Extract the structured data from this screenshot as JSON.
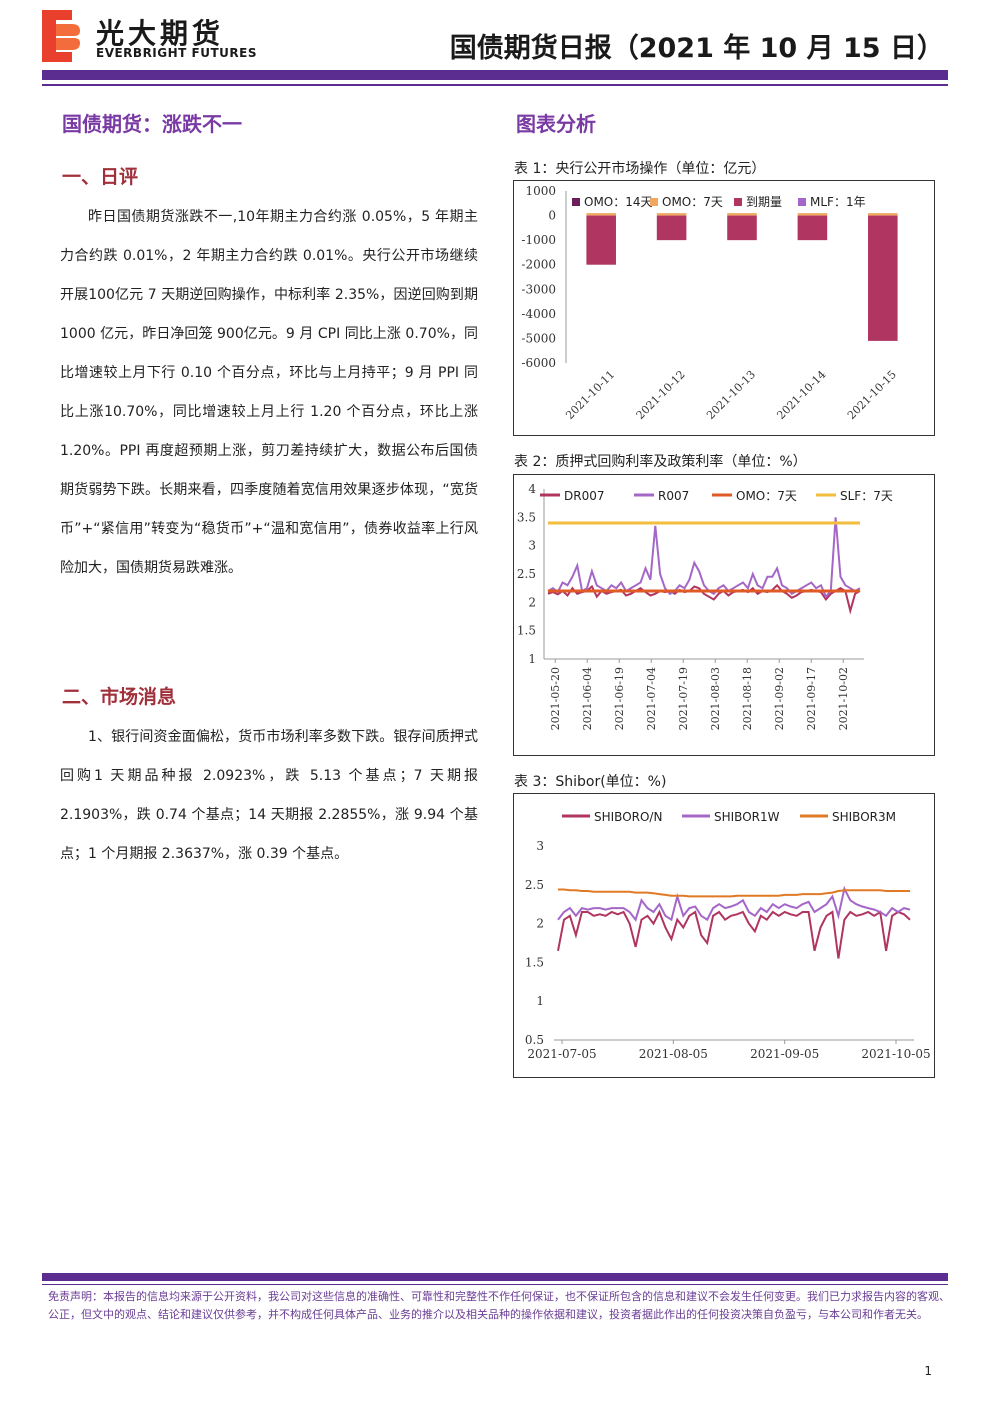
{
  "header": {
    "logo_cn": "光大期货",
    "logo_en": "EVERBRIGHT FUTURES",
    "report_title": "国债期货日报（2021 年 10 月 15 日）"
  },
  "left": {
    "main_title": "国债期货：涨跌不一",
    "section1_title": "一、日评",
    "section1_text": "昨日国债期货涨跌不一,10年期主力合约涨 0.05%，5 年期主力合约跌 0.01%，2 年期主力合约跌 0.01%。央行公开市场继续开展100亿元 7 天期逆回购操作，中标利率 2.35%，因逆回购到期1000 亿元，昨日净回笼 900亿元。9 月 CPI 同比上涨 0.70%，同比增速较上月下行 0.10 个百分点，环比与上月持平；9 月 PPI 同比上涨10.70%，同比增速较上月上行 1.20 个百分点，环比上涨 1.20%。PPI 再度超预期上涨，剪刀差持续扩大，数据公布后国债期货弱势下跌。长期来看，四季度随着宽信用效果逐步体现，“宽货币”+“紧信用”转变为“稳货币”+“温和宽信用”，债券收益率上行风险加大，国债期货易跌难涨。",
    "section2_title": "二、市场消息",
    "section2_text": "1、银行间资金面偏松，货币市场利率多数下跌。银存间质押式回购1 天期品种报 2.0923%，跌 5.13 个基点；7 天期报 2.1903%，跌 0.74 个基点；14 天期报 2.2855%，涨 9.94 个基点；1 个月期报 2.3637%，涨 0.39 个基点。"
  },
  "right": {
    "section_title": "图表分析",
    "chart1_caption": "表 1：央行公开市场操作（单位：亿元）",
    "chart2_caption": "表 2：质押式回购利率及政策利率（单位：%）",
    "chart3_caption": "表 3：Shibor(单位：%)"
  },
  "chart_data": [
    {
      "type": "bar",
      "categories": [
        "2021-10-11",
        "2021-10-12",
        "2021-10-13",
        "2021-10-14",
        "2021-10-15"
      ],
      "series": [
        {
          "name": "OMO：14天",
          "color": "#6b1e5a",
          "values": [
            0,
            0,
            0,
            0,
            0
          ]
        },
        {
          "name": "OMO：7天",
          "color": "#f0a860",
          "values": [
            100,
            100,
            100,
            100,
            100
          ]
        },
        {
          "name": "到期量",
          "color": "#b03560",
          "values": [
            -2000,
            -1000,
            -1000,
            -1000,
            -5100
          ]
        },
        {
          "name": "MLF：1年",
          "color": "#a467c8",
          "values": [
            0,
            0,
            0,
            0,
            0
          ]
        }
      ],
      "ylim": [
        -6000,
        1000
      ],
      "yticks": [
        1000,
        0,
        -1000,
        -2000,
        -3000,
        -4000,
        -5000,
        -6000
      ],
      "legend": "top"
    },
    {
      "type": "line",
      "xticks": [
        "2021-05-20",
        "2021-06-04",
        "2021-06-19",
        "2021-07-04",
        "2021-07-19",
        "2021-08-03",
        "2021-08-18",
        "2021-09-02",
        "2021-09-17",
        "2021-10-02"
      ],
      "ylim": [
        1,
        4
      ],
      "yticks": [
        4,
        3.5,
        3,
        2.5,
        2,
        1.5,
        1
      ],
      "series": [
        {
          "name": "DR007",
          "color": "#b03560",
          "values": [
            2.15,
            2.18,
            2.14,
            2.2,
            2.12,
            2.25,
            2.15,
            2.18,
            2.2,
            2.28,
            2.1,
            2.2,
            2.15,
            2.18,
            2.2,
            2.22,
            2.12,
            2.15,
            2.2,
            2.25,
            2.18,
            2.12,
            2.15,
            2.2,
            2.18,
            2.2,
            2.15,
            2.22,
            2.18,
            2.2,
            2.28,
            2.25,
            2.15,
            2.1,
            2.05,
            2.15,
            2.2,
            2.12,
            2.18,
            2.2,
            2.22,
            2.18,
            2.25,
            2.15,
            2.2,
            2.18,
            2.22,
            2.3,
            2.2,
            2.15,
            2.08,
            2.12,
            2.18,
            2.2,
            2.22,
            2.2,
            2.18,
            2.05,
            2.15,
            2.2,
            2.25,
            2.2,
            1.85,
            2.15,
            2.2
          ]
        },
        {
          "name": "R007",
          "color": "#a467c8",
          "values": [
            2.2,
            2.25,
            2.18,
            2.35,
            2.3,
            2.45,
            2.65,
            2.2,
            2.25,
            2.55,
            2.3,
            2.25,
            2.2,
            2.3,
            2.25,
            2.35,
            2.2,
            2.25,
            2.3,
            2.35,
            2.6,
            2.4,
            3.35,
            2.5,
            2.25,
            2.15,
            2.2,
            2.3,
            2.25,
            2.4,
            2.7,
            2.55,
            2.3,
            2.2,
            2.15,
            2.25,
            2.3,
            2.2,
            2.25,
            2.3,
            2.35,
            2.25,
            2.5,
            2.3,
            2.25,
            2.45,
            2.45,
            2.6,
            2.3,
            2.25,
            2.15,
            2.2,
            2.25,
            2.3,
            2.35,
            2.25,
            2.3,
            2.1,
            2.2,
            3.5,
            2.45,
            2.3,
            2.25,
            2.2,
            2.25
          ]
        },
        {
          "name": "OMO：7天",
          "color": "#e05a25",
          "values": [
            2.2,
            2.2
          ]
        },
        {
          "name": "SLF：7天",
          "color": "#f2be3c",
          "values": [
            3.4,
            3.4
          ]
        }
      ],
      "legend": "top"
    },
    {
      "type": "line",
      "xticks": [
        "2021-07-05",
        "2021-08-05",
        "2021-09-05",
        "2021-10-05"
      ],
      "ylim": [
        0.5,
        3
      ],
      "yticks": [
        3,
        2.5,
        2,
        1.5,
        1,
        0.5
      ],
      "series": [
        {
          "name": "SHIBORO/N",
          "color": "#b03560",
          "values": [
            1.65,
            2.05,
            2.1,
            1.85,
            2.15,
            2.15,
            2.1,
            2.12,
            2.1,
            2.15,
            2.12,
            2.15,
            2.0,
            1.7,
            2.05,
            2.1,
            2.0,
            2.15,
            1.95,
            1.8,
            2.05,
            1.95,
            2.1,
            2.15,
            1.85,
            1.75,
            2.1,
            2.15,
            2.05,
            2.1,
            2.12,
            2.15,
            2.0,
            1.9,
            2.1,
            2.05,
            2.15,
            2.1,
            2.15,
            2.12,
            2.1,
            2.15,
            2.15,
            1.65,
            1.95,
            2.1,
            2.15,
            1.55,
            2.05,
            2.15,
            2.1,
            2.12,
            2.15,
            2.1,
            2.15,
            1.65,
            2.1,
            2.15,
            2.12,
            2.05
          ]
        },
        {
          "name": "SHIBOR1W",
          "color": "#a467c8",
          "values": [
            2.05,
            2.15,
            2.2,
            2.1,
            2.2,
            2.18,
            2.2,
            2.2,
            2.18,
            2.2,
            2.2,
            2.2,
            2.15,
            2.05,
            2.3,
            2.2,
            2.15,
            2.25,
            2.1,
            2.05,
            2.35,
            2.1,
            2.2,
            2.22,
            2.1,
            2.05,
            2.2,
            2.25,
            2.2,
            2.22,
            2.25,
            2.3,
            2.15,
            2.1,
            2.2,
            2.15,
            2.25,
            2.2,
            2.25,
            2.22,
            2.2,
            2.25,
            2.28,
            2.15,
            2.2,
            2.25,
            2.35,
            2.1,
            2.45,
            2.3,
            2.25,
            2.22,
            2.2,
            2.18,
            2.15,
            2.1,
            2.2,
            2.15,
            2.2,
            2.18
          ]
        },
        {
          "name": "SHIBOR3M",
          "color": "#e07a25",
          "values": [
            2.44,
            2.44,
            2.43,
            2.43,
            2.42,
            2.42,
            2.41,
            2.41,
            2.41,
            2.41,
            2.41,
            2.41,
            2.41,
            2.4,
            2.4,
            2.4,
            2.39,
            2.38,
            2.37,
            2.36,
            2.36,
            2.36,
            2.35,
            2.35,
            2.35,
            2.35,
            2.35,
            2.35,
            2.35,
            2.35,
            2.36,
            2.36,
            2.36,
            2.36,
            2.36,
            2.36,
            2.36,
            2.36,
            2.37,
            2.37,
            2.37,
            2.38,
            2.38,
            2.38,
            2.38,
            2.39,
            2.4,
            2.42,
            2.43,
            2.43,
            2.43,
            2.43,
            2.43,
            2.43,
            2.43,
            2.42,
            2.42,
            2.42,
            2.42,
            2.42
          ]
        }
      ],
      "legend": "top"
    }
  ],
  "footer": {
    "disclaimer": "免责声明：本报告的信息均来源于公开资料，我公司对这些信息的准确性、可靠性和完整性不作任何保证，也不保证所包含的信息和建议不会发生任何变更。我们已力求报告内容的客观、公正，但文中的观点、结论和建议仅供参考，并不构成任何具体产品、业务的推介以及相关品种的操作依据和建议，投资者据此作出的任何投资决策自负盈亏，与本公司和作者无关。",
    "page_number": "1"
  }
}
